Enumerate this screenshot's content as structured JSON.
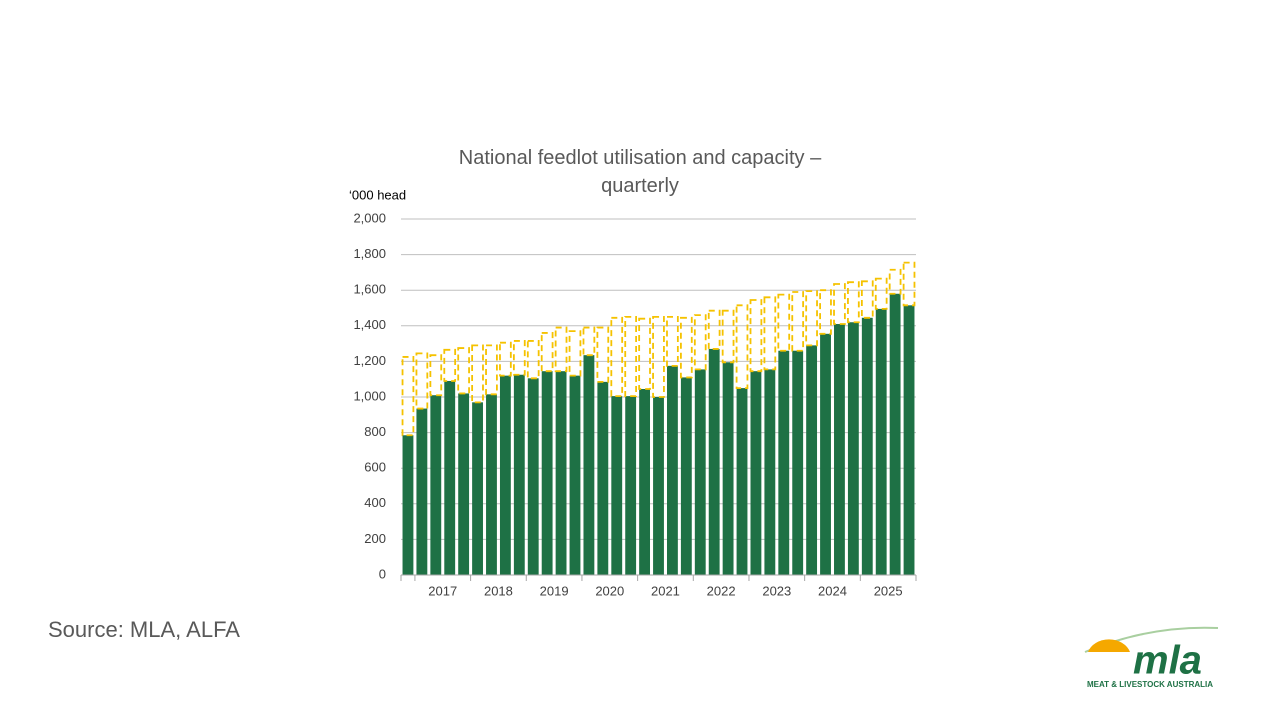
{
  "chart_data": {
    "type": "stacked-bar",
    "title": "National feedlot utilisation and capacity – quarterly",
    "ylabel": "‘000 head",
    "categories": [
      null,
      "2017",
      null,
      null,
      null,
      "2018",
      null,
      null,
      null,
      "2019",
      null,
      null,
      null,
      "2020",
      null,
      null,
      null,
      "2021",
      null,
      null,
      null,
      "2022",
      null,
      null,
      null,
      "2023",
      null,
      null,
      null,
      "2024",
      null,
      null,
      null,
      "2025",
      null,
      null,
      null
    ],
    "series": [
      {
        "color": "#1e7145",
        "values": [
          785,
          935,
          1010,
          1090,
          1020,
          970,
          1015,
          1120,
          1125,
          1105,
          1145,
          1145,
          1120,
          1235,
          1085,
          1005,
          1005,
          1045,
          1000,
          1175,
          1110,
          1155,
          1270,
          1195,
          1050,
          1145,
          1155,
          1260,
          1260,
          1290,
          1355,
          1410,
          1420,
          1445,
          1495,
          1580,
          1515
        ]
      },
      {
        "color": "#f5c200",
        "style": "dashed",
        "values": [
          440,
          310,
          225,
          175,
          255,
          320,
          275,
          185,
          190,
          210,
          215,
          245,
          250,
          155,
          305,
          440,
          445,
          395,
          450,
          275,
          335,
          305,
          215,
          290,
          465,
          400,
          405,
          315,
          330,
          305,
          245,
          225,
          225,
          205,
          170,
          135,
          240
        ]
      }
    ],
    "ylim": [
      0,
      2000
    ],
    "yticks": [
      0,
      200,
      400,
      600,
      800,
      {
        "value": 1000,
        "label": "1,000"
      },
      {
        "value": 1200,
        "label": "1,200"
      },
      {
        "value": 1400,
        "label": "1,400"
      },
      {
        "value": 1600,
        "label": "1,600"
      },
      {
        "value": 1800,
        "label": "1,800"
      },
      {
        "value": 2000,
        "label": "2,000"
      }
    ],
    "grid": true
  },
  "source": "Source: MLA, ALFA",
  "logo": {
    "wordmark": "mla",
    "tagline": "MEAT & LIVESTOCK AUSTRALIA"
  }
}
